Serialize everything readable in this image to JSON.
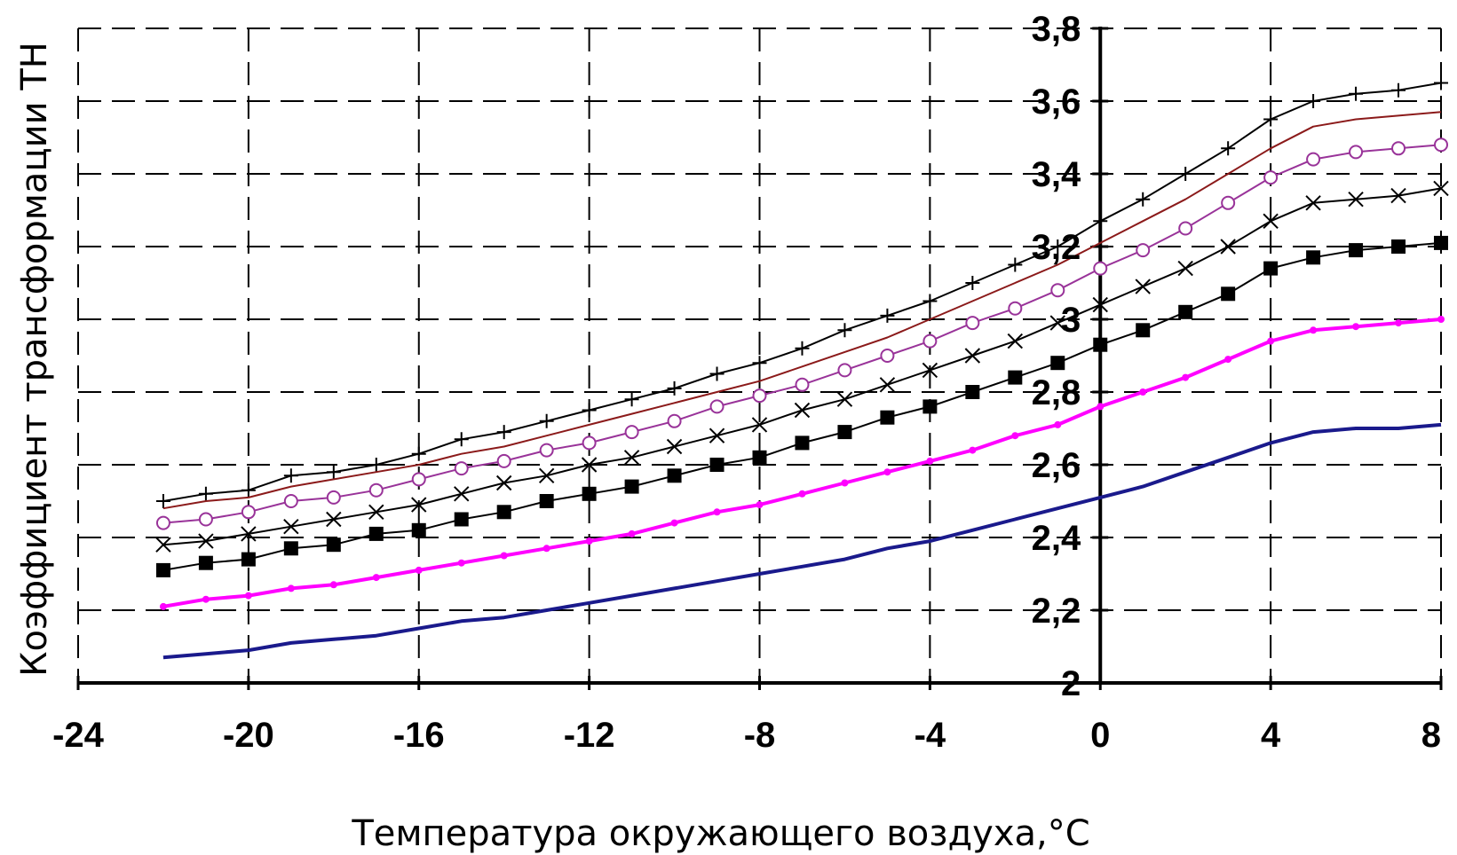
{
  "chart_data": {
    "type": "line",
    "title": "",
    "xlabel": "Температура окружающего воздуха,",
    "xlabel_unit": "°С",
    "ylabel": "Коэффициент трансформации ТН",
    "xlim": [
      -24,
      8
    ],
    "ylim": [
      2,
      3.8
    ],
    "x_ticks": [
      "-24",
      "-20",
      "-16",
      "-12",
      "-8",
      "-4",
      "0",
      "4",
      "8"
    ],
    "y_ticks": [
      "2",
      "2,2",
      "2,4",
      "2,6",
      "2,8",
      "3",
      "3,2",
      "3,4",
      "3,6",
      "3,8"
    ],
    "grid": true,
    "legend": "none",
    "x": [
      -22,
      -21,
      -20,
      -19,
      -18,
      -17,
      -16,
      -15,
      -14,
      -13,
      -12,
      -11,
      -10,
      -9,
      -8,
      -7,
      -6,
      -5,
      -4,
      -3,
      -2,
      -1,
      0,
      1,
      2,
      3,
      4,
      5,
      6,
      7,
      8
    ],
    "series": [
      {
        "color": "#000000",
        "marker": "plus",
        "values": [
          2.5,
          2.52,
          2.53,
          2.57,
          2.58,
          2.6,
          2.63,
          2.67,
          2.69,
          2.72,
          2.75,
          2.78,
          2.81,
          2.85,
          2.88,
          2.92,
          2.97,
          3.01,
          3.05,
          3.1,
          3.15,
          3.2,
          3.27,
          3.33,
          3.4,
          3.47,
          3.55,
          3.6,
          3.62,
          3.63,
          3.65
        ]
      },
      {
        "color": "#8b1a1a",
        "marker": "none",
        "values": [
          2.48,
          2.5,
          2.51,
          2.54,
          2.56,
          2.58,
          2.6,
          2.63,
          2.65,
          2.68,
          2.71,
          2.74,
          2.77,
          2.8,
          2.83,
          2.87,
          2.91,
          2.95,
          3.0,
          3.05,
          3.1,
          3.15,
          3.21,
          3.27,
          3.33,
          3.4,
          3.47,
          3.53,
          3.55,
          3.56,
          3.57
        ]
      },
      {
        "color": "#993399",
        "marker": "circle",
        "values": [
          2.44,
          2.45,
          2.47,
          2.5,
          2.51,
          2.53,
          2.56,
          2.59,
          2.61,
          2.64,
          2.66,
          2.69,
          2.72,
          2.76,
          2.79,
          2.82,
          2.86,
          2.9,
          2.94,
          2.99,
          3.03,
          3.08,
          3.14,
          3.19,
          3.25,
          3.32,
          3.39,
          3.44,
          3.46,
          3.47,
          3.48
        ]
      },
      {
        "color": "#000000",
        "marker": "cross",
        "values": [
          2.38,
          2.39,
          2.41,
          2.43,
          2.45,
          2.47,
          2.49,
          2.52,
          2.55,
          2.57,
          2.6,
          2.62,
          2.65,
          2.68,
          2.71,
          2.75,
          2.78,
          2.82,
          2.86,
          2.9,
          2.94,
          2.99,
          3.04,
          3.09,
          3.14,
          3.2,
          3.27,
          3.32,
          3.33,
          3.34,
          3.36
        ]
      },
      {
        "color": "#000000",
        "marker": "square",
        "values": [
          2.31,
          2.33,
          2.34,
          2.37,
          2.38,
          2.41,
          2.42,
          2.45,
          2.47,
          2.5,
          2.52,
          2.54,
          2.57,
          2.6,
          2.62,
          2.66,
          2.69,
          2.73,
          2.76,
          2.8,
          2.84,
          2.88,
          2.93,
          2.97,
          3.02,
          3.07,
          3.14,
          3.17,
          3.19,
          3.2,
          3.21
        ]
      },
      {
        "color": "#ff00ff",
        "marker": "dot",
        "values": [
          2.21,
          2.23,
          2.24,
          2.26,
          2.27,
          2.29,
          2.31,
          2.33,
          2.35,
          2.37,
          2.39,
          2.41,
          2.44,
          2.47,
          2.49,
          2.52,
          2.55,
          2.58,
          2.61,
          2.64,
          2.68,
          2.71,
          2.76,
          2.8,
          2.84,
          2.89,
          2.94,
          2.97,
          2.98,
          2.99,
          3.0
        ]
      },
      {
        "color": "#1a1a8c",
        "marker": "none",
        "values": [
          2.07,
          2.08,
          2.09,
          2.11,
          2.12,
          2.13,
          2.15,
          2.17,
          2.18,
          2.2,
          2.22,
          2.24,
          2.26,
          2.28,
          2.3,
          2.32,
          2.34,
          2.37,
          2.39,
          2.42,
          2.45,
          2.48,
          2.51,
          2.54,
          2.58,
          2.62,
          2.66,
          2.69,
          2.7,
          2.7,
          2.71
        ]
      }
    ]
  }
}
